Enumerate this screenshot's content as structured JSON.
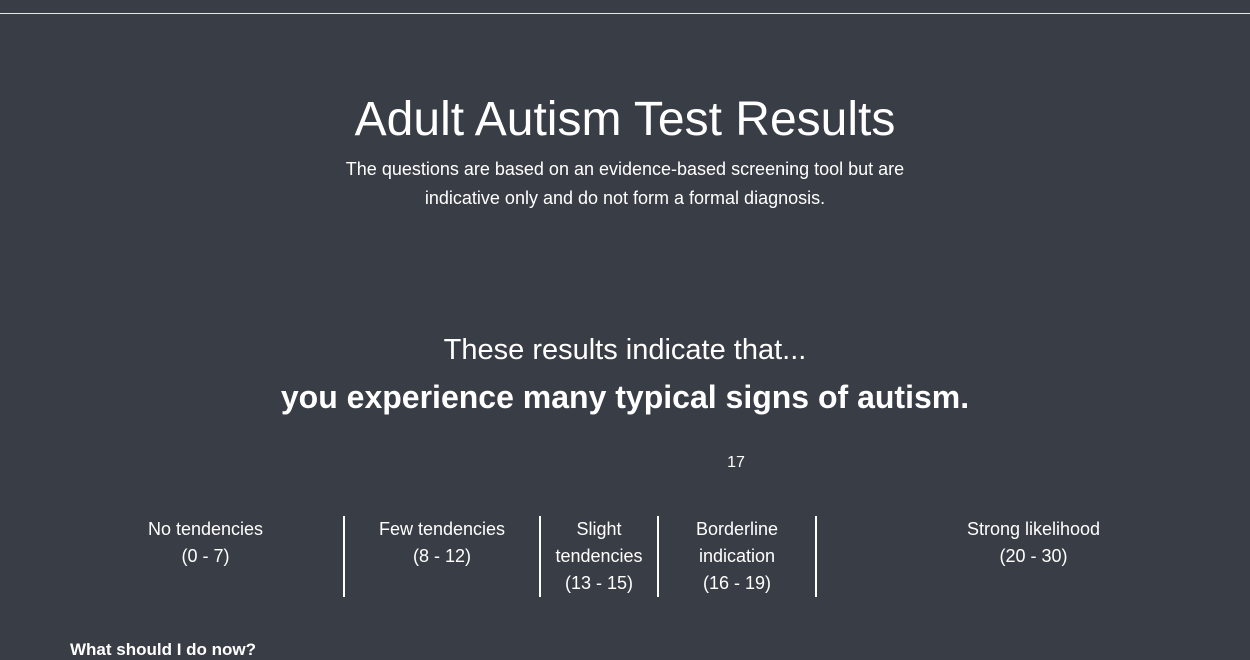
{
  "header": {
    "title": "Adult Autism Test Results",
    "subtitle_line1": "The questions are based on an evidence-based screening tool but are",
    "subtitle_line2": "indicative only and do not form a formal diagnosis."
  },
  "result": {
    "intro": "These results indicate that...",
    "verdict": "you experience many typical signs of autism.",
    "score": "17"
  },
  "scale": [
    {
      "label": "No tendencies",
      "range": "(0 - 7)"
    },
    {
      "label": "Few tendencies",
      "range": "(8 - 12)"
    },
    {
      "label": "Slight",
      "label2": "tendencies",
      "range": "(13 - 15)"
    },
    {
      "label": "Borderline",
      "label2": "indication",
      "range": "(16 - 19)"
    },
    {
      "label": "Strong likelihood",
      "range": "(20 - 30)"
    }
  ],
  "next_heading": "What should I do now?"
}
